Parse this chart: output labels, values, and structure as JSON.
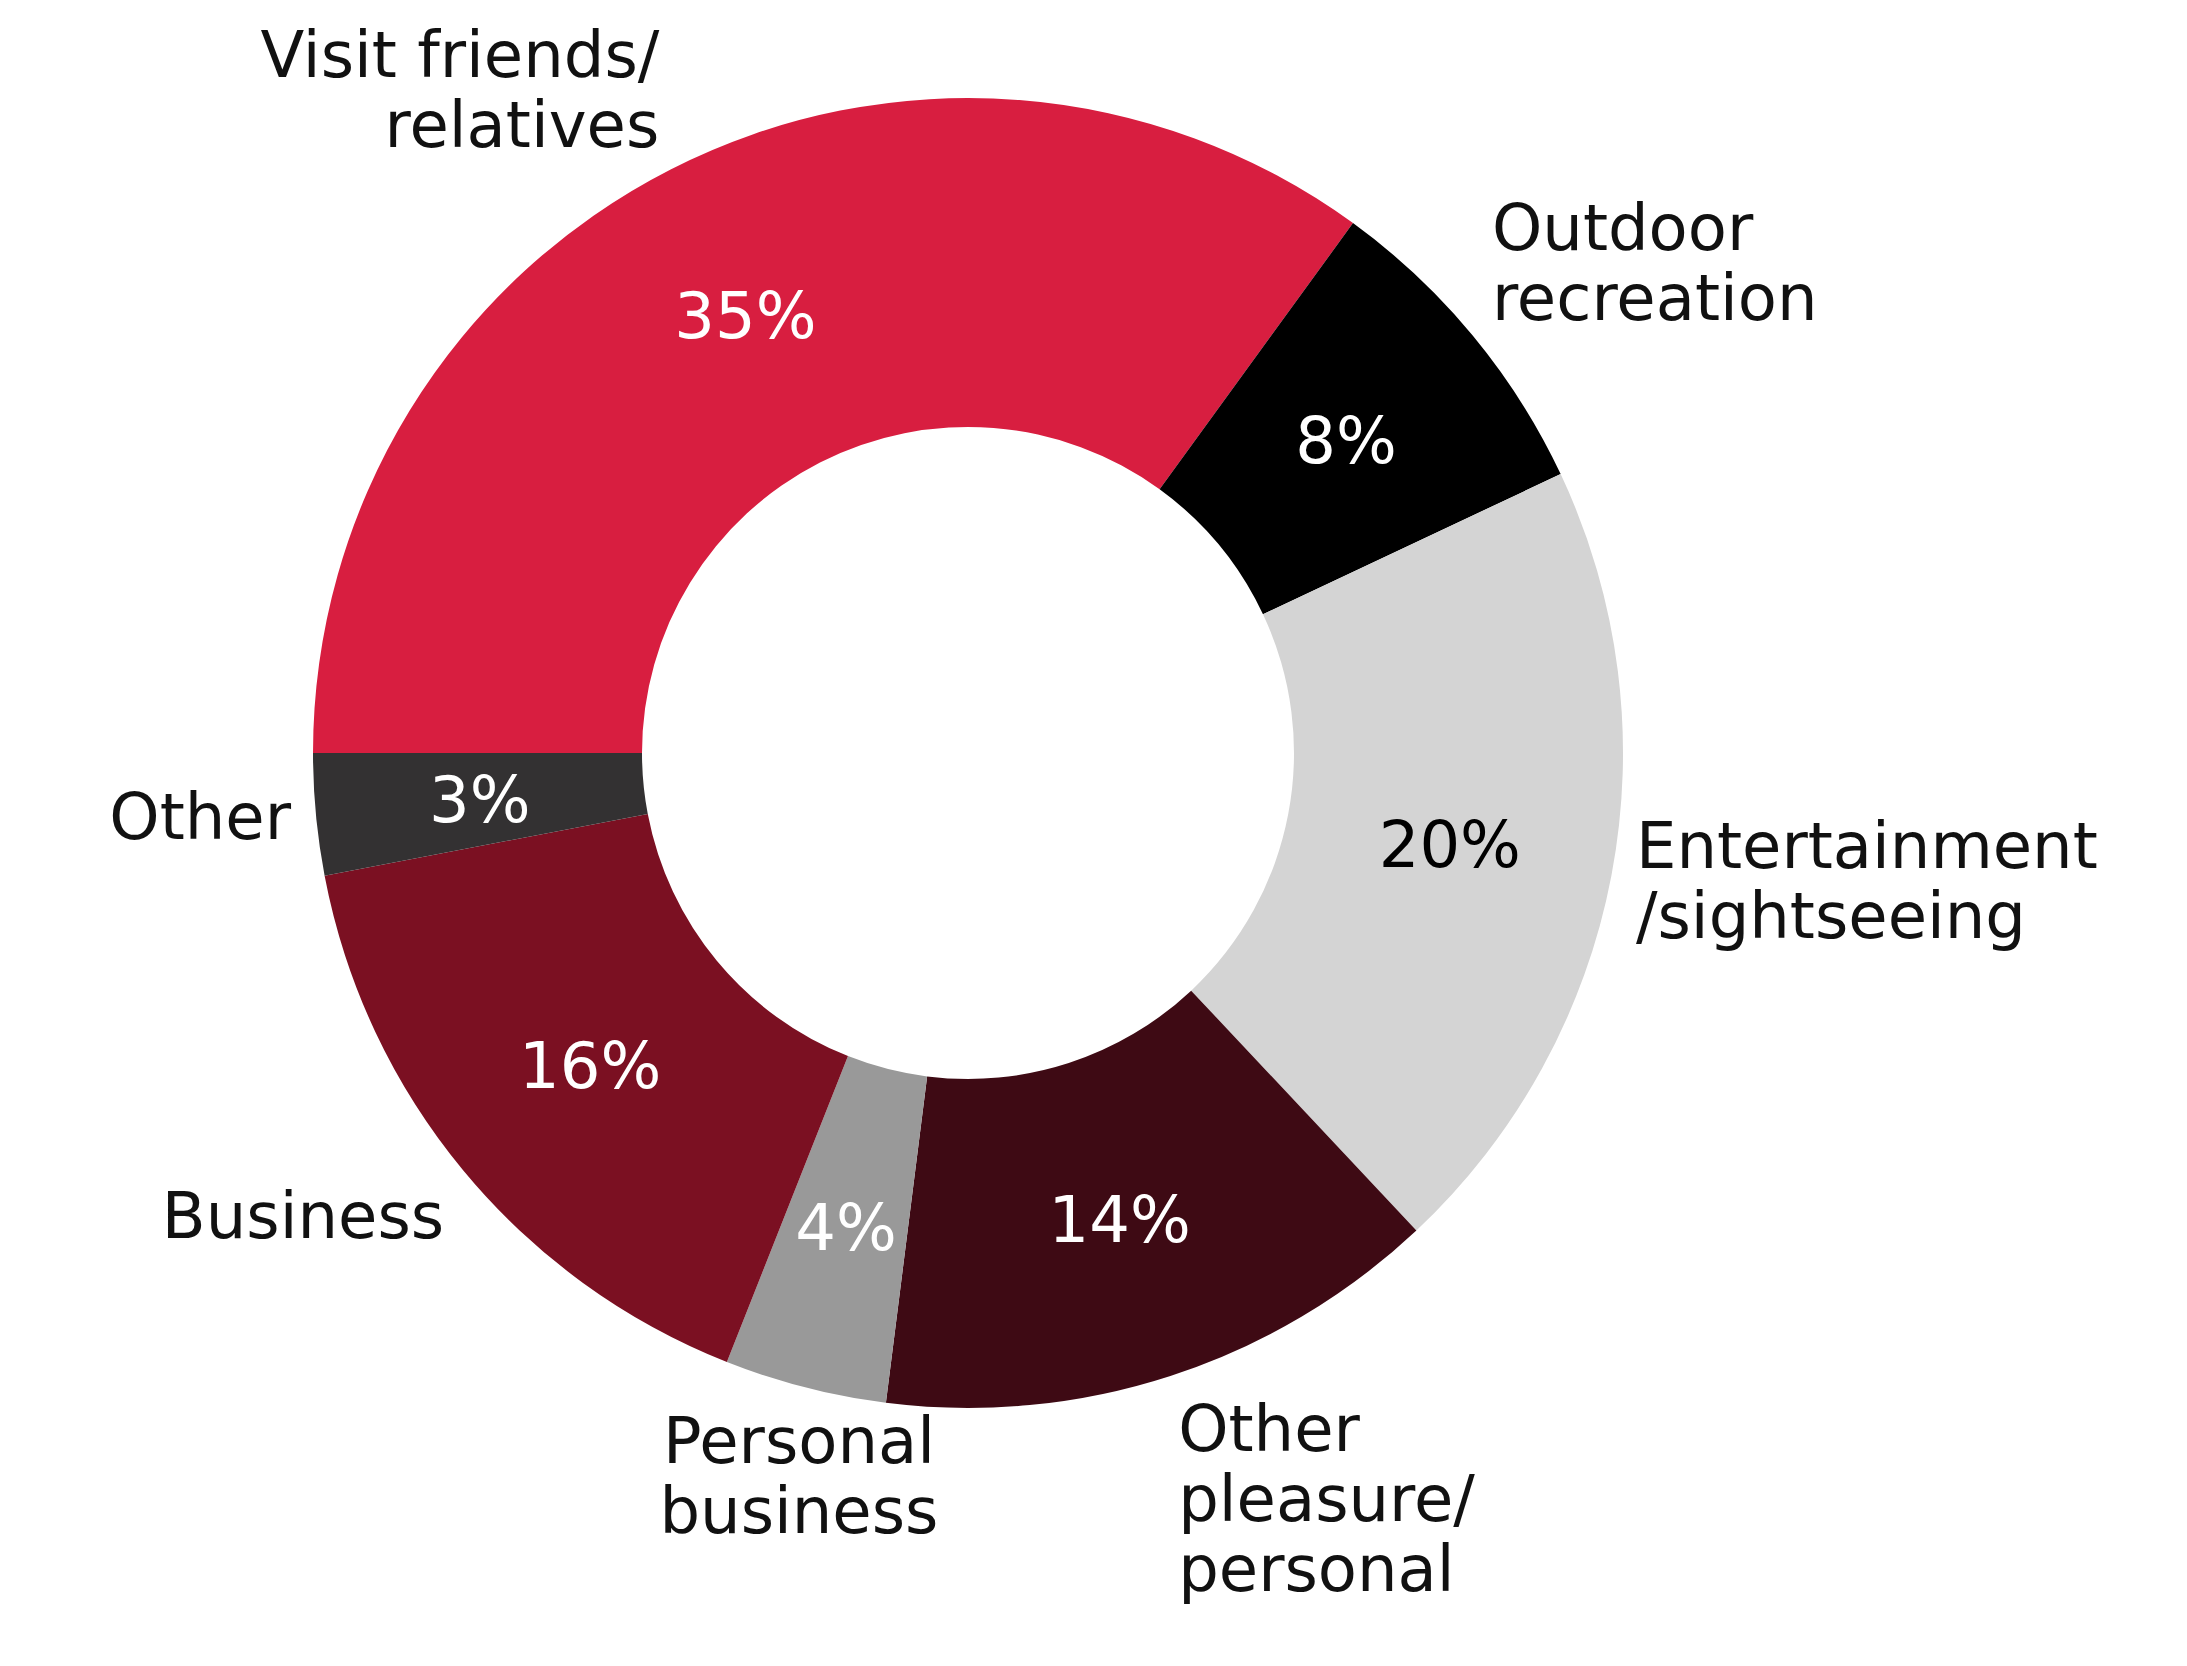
{
  "chart_data": {
    "type": "donut",
    "categories": [
      "Visit friends/\nrelatives",
      "Outdoor\nrecreation",
      "Entertainment\n/sightseeing",
      "Other\npleasure/\npersonal",
      "Personal\nbusiness",
      "Business",
      "Other"
    ],
    "values": [
      35,
      8,
      20,
      14,
      4,
      16,
      3
    ],
    "value_labels": [
      "35%",
      "8%",
      "20%",
      "14%",
      "4%",
      "16%",
      "3%"
    ],
    "colors": [
      "#d81e40",
      "#000000",
      "#d4d4d4",
      "#3e0a14",
      "#999999",
      "#7b1022",
      "#333132"
    ]
  }
}
